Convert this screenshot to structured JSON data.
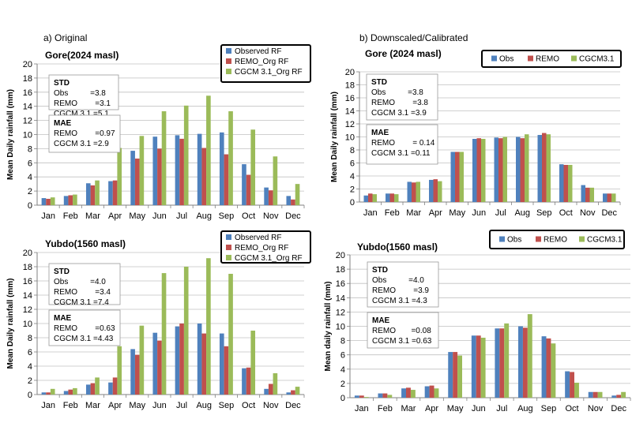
{
  "panels": {
    "left_heading": "a) Original",
    "right_heading": "b) Downscaled/Calibrated"
  },
  "months": [
    "Jan",
    "Feb",
    "Mar",
    "Apr",
    "May",
    "Jun",
    "Jul",
    "Aug",
    "Sep",
    "Oct",
    "Nov",
    "Dec"
  ],
  "colors": {
    "obs": "#4f81bd",
    "remo": "#c0504d",
    "cgcm": "#9bbb59",
    "grid": "#c0c0c0",
    "axis": "#808080"
  },
  "chart_data": [
    {
      "id": "a1",
      "type": "bar",
      "title": "Gore(2024 masl)",
      "ylabel": "Mean Daily rainfall (mm)",
      "ylim": [
        0,
        20
      ],
      "yticks": [
        "0",
        "2",
        "4",
        "6",
        "8",
        "10",
        "12",
        "14",
        "16",
        "18",
        "20"
      ],
      "grid": true,
      "legend_placement": "top-right",
      "legend_layout": "vertical",
      "categories": [
        "Jan",
        "Feb",
        "Mar",
        "Apr",
        "May",
        "Jun",
        "Jul",
        "Aug",
        "Sep",
        "Oct",
        "Nov",
        "Dec"
      ],
      "series": [
        {
          "name": "Observed RF",
          "values": [
            1.0,
            1.3,
            3.1,
            3.4,
            7.7,
            9.7,
            9.9,
            10.1,
            10.3,
            5.8,
            2.5,
            1.3
          ]
        },
        {
          "name": "REMO_Org RF",
          "values": [
            0.9,
            1.4,
            2.8,
            3.5,
            6.6,
            8.0,
            9.4,
            8.1,
            7.2,
            4.3,
            2.1,
            0.8
          ]
        },
        {
          "name": "CGCM 3.1_Org RF",
          "values": [
            1.1,
            1.5,
            3.5,
            8.1,
            9.8,
            13.3,
            14.1,
            15.5,
            13.3,
            10.7,
            6.9,
            3.0
          ]
        }
      ],
      "stats_boxes": [
        {
          "heading": "STD",
          "lines": [
            "Obs          =3.8",
            "REMO        =3.1",
            "CGCM 3.1 =5.1"
          ]
        },
        {
          "heading": "MAE",
          "lines": [
            "REMO        =0.97",
            "CGCM 3.1 =2.9"
          ]
        }
      ]
    },
    {
      "id": "b1",
      "type": "bar",
      "title": "Gore (2024 masl)",
      "ylabel": "Mean Daily rainfall (mm)",
      "ylim": [
        0,
        20
      ],
      "yticks": [
        "0",
        "2",
        "4",
        "6",
        "8",
        "10",
        "12",
        "14",
        "16",
        "18",
        "20"
      ],
      "grid": true,
      "legend_placement": "top-right",
      "legend_layout": "horizontal",
      "categories": [
        "Jan",
        "Feb",
        "Mar",
        "Apr",
        "May",
        "Jun",
        "Jul",
        "Aug",
        "Sep",
        "Oct",
        "Nov",
        "Dec"
      ],
      "series": [
        {
          "name": "Obs",
          "values": [
            1.0,
            1.3,
            3.1,
            3.4,
            7.7,
            9.7,
            9.9,
            10.0,
            10.3,
            5.8,
            2.6,
            1.3
          ]
        },
        {
          "name": "REMO",
          "values": [
            1.3,
            1.3,
            3.0,
            3.5,
            7.7,
            9.8,
            9.8,
            9.8,
            10.6,
            5.7,
            2.2,
            1.3
          ]
        },
        {
          "name": "CGCM3.1",
          "values": [
            1.2,
            1.2,
            3.1,
            3.2,
            7.7,
            9.7,
            10.0,
            10.4,
            10.4,
            5.7,
            2.2,
            1.3
          ]
        }
      ],
      "stats_boxes": [
        {
          "heading": "STD",
          "lines": [
            "Obs          =3.8",
            "REMO        =3.8",
            "CGCM 3.1 =3.9"
          ]
        },
        {
          "heading": "MAE",
          "lines": [
            "REMO        = 0.14",
            "CGCM 3.1 =0.11"
          ]
        }
      ]
    },
    {
      "id": "a2",
      "type": "bar",
      "title": "Yubdo(1560 masl)",
      "ylabel": "Mean Daily rainfall (mm)",
      "ylim": [
        0,
        20
      ],
      "yticks": [
        "0",
        "2",
        "4",
        "6",
        "8",
        "10",
        "12",
        "14",
        "16",
        "18",
        "20"
      ],
      "grid": true,
      "legend_placement": "top-right",
      "legend_layout": "vertical",
      "categories": [
        "Jan",
        "Feb",
        "Mar",
        "Apr",
        "May",
        "Jun",
        "Jul",
        "Aug",
        "Sep",
        "Oct",
        "Nov",
        "Dec"
      ],
      "series": [
        {
          "name": "Observed RF",
          "values": [
            0.3,
            0.5,
            1.4,
            1.7,
            6.4,
            8.7,
            9.6,
            10.0,
            8.6,
            3.7,
            0.8,
            0.3
          ]
        },
        {
          "name": "REMO_Org RF",
          "values": [
            0.3,
            0.7,
            1.6,
            2.4,
            5.6,
            7.6,
            10.0,
            8.6,
            6.8,
            3.8,
            1.5,
            0.6
          ]
        },
        {
          "name": "CGCM 3.1_Org RF",
          "values": [
            0.8,
            0.9,
            2.4,
            6.8,
            9.7,
            17.1,
            18.0,
            19.2,
            17.0,
            9.0,
            3.0,
            1.1
          ]
        }
      ],
      "stats_boxes": [
        {
          "heading": "STD",
          "lines": [
            "Obs          =4.0",
            "REMO        =3.4",
            "CGCM 3.1 =7.4"
          ]
        },
        {
          "heading": "MAE",
          "lines": [
            "REMO        =0.63",
            "CGCM 3.1 =4.43"
          ]
        }
      ]
    },
    {
      "id": "b2",
      "type": "bar",
      "title": "Yubdo(1560 masl)",
      "ylabel": "Mean  daily rainfall (mm)",
      "ylim": [
        0,
        20
      ],
      "yticks": [
        "0",
        "2",
        "4",
        "6",
        "8",
        "10",
        "12",
        "14",
        "16",
        "18",
        "20"
      ],
      "grid": true,
      "legend_placement": "top-right",
      "legend_layout": "horizontal",
      "categories": [
        "Jan",
        "Feb",
        "Mar",
        "Apr",
        "May",
        "Jun",
        "Jul",
        "Aug",
        "Sep",
        "Oct",
        "Nov",
        "Dec"
      ],
      "series": [
        {
          "name": "Obs",
          "values": [
            0.3,
            0.6,
            1.3,
            1.6,
            6.4,
            8.7,
            9.7,
            10.0,
            8.6,
            3.7,
            0.8,
            0.3
          ]
        },
        {
          "name": "REMO",
          "values": [
            0.3,
            0.6,
            1.4,
            1.7,
            6.4,
            8.7,
            9.7,
            9.8,
            8.3,
            3.6,
            0.8,
            0.4
          ]
        },
        {
          "name": "CGCM3.1",
          "values": [
            0.1,
            0.4,
            1.1,
            1.3,
            5.9,
            8.4,
            10.4,
            11.7,
            7.6,
            2.1,
            0.8,
            0.8
          ]
        }
      ],
      "stats_boxes": [
        {
          "heading": "STD",
          "lines": [
            "Obs          =4.0",
            "REMO        =3.9",
            "CGCM 3.1 =4.3"
          ]
        },
        {
          "heading": "MAE",
          "lines": [
            "REMO       =0.08",
            "CGCM 3.1 =0.63"
          ]
        }
      ]
    }
  ]
}
